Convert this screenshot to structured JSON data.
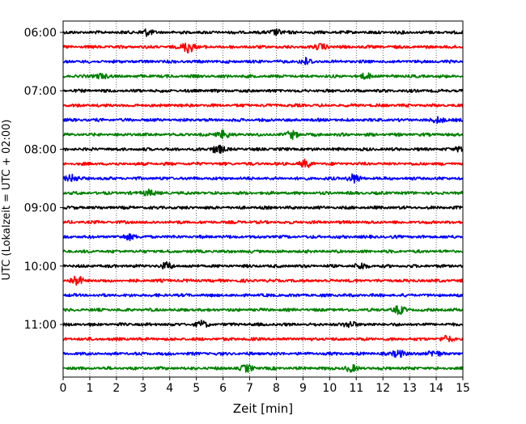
{
  "chart_data": {
    "type": "line",
    "subtype": "helicorder",
    "title": "",
    "xlabel": "Zeit  [min]",
    "ylabel": "UTC (Lokalzeit = UTC + 02:00)",
    "xlim": [
      0,
      15
    ],
    "x_ticks": [
      "0",
      "1",
      "2",
      "3",
      "4",
      "5",
      "6",
      "7",
      "8",
      "9",
      "10",
      "11",
      "12",
      "13",
      "14",
      "15"
    ],
    "y_tick_labels": [
      "06:00",
      "07:00",
      "08:00",
      "09:00",
      "10:00",
      "11:00"
    ],
    "trace_minutes": 15,
    "trace_start_times": [
      "06:00",
      "06:15",
      "06:30",
      "06:45",
      "07:00",
      "07:15",
      "07:30",
      "07:45",
      "08:00",
      "08:15",
      "08:30",
      "08:45",
      "09:00",
      "09:15",
      "09:30",
      "09:45",
      "10:00",
      "10:15",
      "10:30",
      "10:45",
      "11:00",
      "11:15",
      "11:30",
      "11:45"
    ],
    "series_colors": [
      "#000000",
      "#ff0000",
      "#0000ff",
      "#008000"
    ],
    "grid": "vertical dotted at each minute",
    "legend": "none",
    "bursts": [
      {
        "trace": 0,
        "minute": 3.1,
        "amp": 1.8
      },
      {
        "trace": 0,
        "minute": 8.0,
        "amp": 1.6
      },
      {
        "trace": 1,
        "minute": 4.7,
        "amp": 3.5
      },
      {
        "trace": 1,
        "minute": 9.7,
        "amp": 1.6
      },
      {
        "trace": 2,
        "minute": 9.1,
        "amp": 1.8
      },
      {
        "trace": 3,
        "minute": 1.4,
        "amp": 1.5
      },
      {
        "trace": 3,
        "minute": 11.4,
        "amp": 1.5
      },
      {
        "trace": 6,
        "minute": 14.1,
        "amp": 1.6
      },
      {
        "trace": 7,
        "minute": 6.0,
        "amp": 2.2
      },
      {
        "trace": 7,
        "minute": 8.6,
        "amp": 2.0
      },
      {
        "trace": 8,
        "minute": 5.8,
        "amp": 2.5
      },
      {
        "trace": 8,
        "minute": 15.0,
        "amp": 2.3
      },
      {
        "trace": 9,
        "minute": 9.1,
        "amp": 1.9
      },
      {
        "trace": 10,
        "minute": 0.3,
        "amp": 2.0
      },
      {
        "trace": 10,
        "minute": 10.9,
        "amp": 2.3
      },
      {
        "trace": 11,
        "minute": 3.2,
        "amp": 1.7
      },
      {
        "trace": 14,
        "minute": 2.5,
        "amp": 1.6
      },
      {
        "trace": 16,
        "minute": 3.9,
        "amp": 1.7
      },
      {
        "trace": 16,
        "minute": 11.2,
        "amp": 1.6
      },
      {
        "trace": 17,
        "minute": 0.5,
        "amp": 2.6
      },
      {
        "trace": 19,
        "minute": 12.6,
        "amp": 2.1
      },
      {
        "trace": 20,
        "minute": 5.2,
        "amp": 1.6
      },
      {
        "trace": 20,
        "minute": 10.8,
        "amp": 1.7
      },
      {
        "trace": 21,
        "minute": 14.4,
        "amp": 1.5
      },
      {
        "trace": 22,
        "minute": 12.6,
        "amp": 2.1
      },
      {
        "trace": 22,
        "minute": 13.9,
        "amp": 1.8
      },
      {
        "trace": 23,
        "minute": 6.9,
        "amp": 1.8
      },
      {
        "trace": 23,
        "minute": 10.8,
        "amp": 1.7
      }
    ]
  }
}
